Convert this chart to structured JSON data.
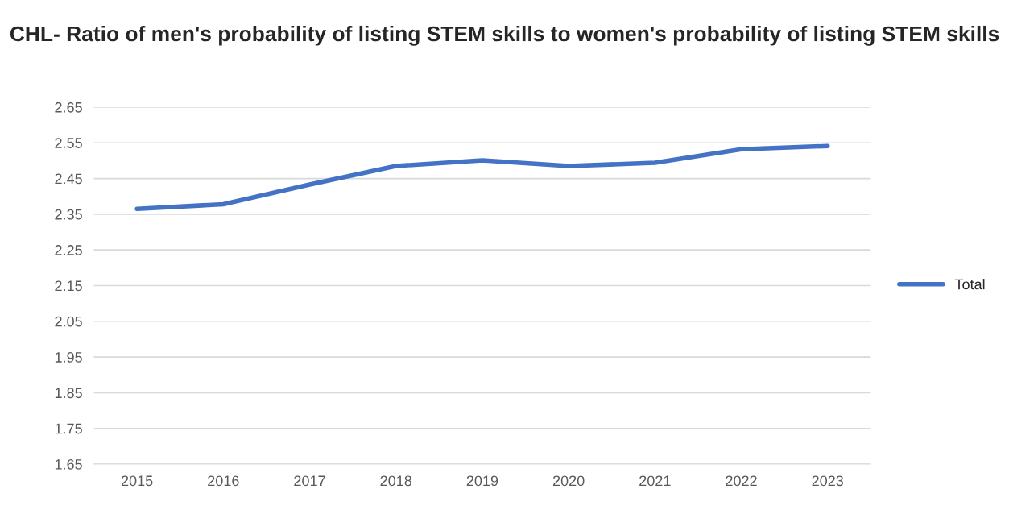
{
  "chart_data": {
    "type": "line",
    "title": "CHL- Ratio of men's probability of listing STEM skills to women's probability of listing STEM skills",
    "categories": [
      "2015",
      "2016",
      "2017",
      "2018",
      "2019",
      "2020",
      "2021",
      "2022",
      "2023"
    ],
    "series": [
      {
        "name": "Total",
        "color": "#4472c4",
        "values": [
          2.365,
          2.378,
          2.433,
          2.485,
          2.501,
          2.485,
          2.494,
          2.532,
          2.541
        ]
      }
    ],
    "ylim": [
      1.65,
      2.65
    ],
    "yticks": [
      1.65,
      1.75,
      1.85,
      1.95,
      2.05,
      2.15,
      2.25,
      2.35,
      2.45,
      2.55,
      2.65
    ],
    "grid": "y",
    "legend": "right",
    "marker": "none",
    "line_style": "solid"
  }
}
